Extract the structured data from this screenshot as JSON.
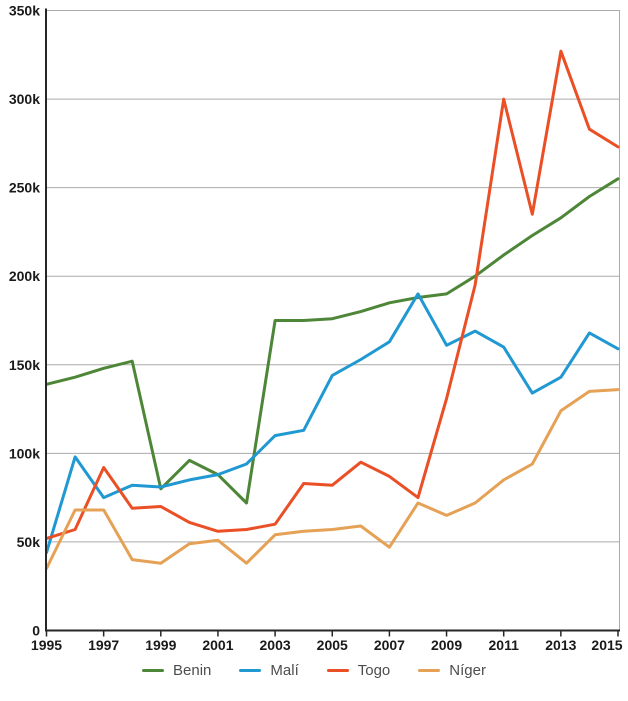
{
  "chart_data": {
    "type": "line",
    "title": "",
    "xlabel": "",
    "ylabel": "",
    "x": [
      1995,
      1996,
      1997,
      1998,
      1999,
      2000,
      2001,
      2002,
      2003,
      2004,
      2005,
      2006,
      2007,
      2008,
      2009,
      2010,
      2011,
      2012,
      2013,
      2014,
      2015
    ],
    "series": [
      {
        "name": "Benin",
        "color": "#4e8638",
        "values": [
          139000,
          143000,
          148000,
          152000,
          80000,
          96000,
          88000,
          72000,
          175000,
          175000,
          176000,
          180000,
          185000,
          188000,
          190000,
          200000,
          212000,
          223000,
          233000,
          245000,
          255000
        ]
      },
      {
        "name": "Malí",
        "color": "#2098d1",
        "values": [
          44000,
          98000,
          75000,
          82000,
          81000,
          85000,
          88000,
          94000,
          110000,
          113000,
          144000,
          153000,
          163000,
          190000,
          161000,
          169000,
          160000,
          134000,
          143000,
          168000,
          159000
        ]
      },
      {
        "name": "Togo",
        "color": "#ea4f26",
        "values": [
          52000,
          57000,
          92000,
          69000,
          70000,
          61000,
          56000,
          57000,
          60000,
          83000,
          82000,
          95000,
          87000,
          75000,
          131000,
          195000,
          300000,
          235000,
          327000,
          283000,
          273000
        ]
      },
      {
        "name": "Níger",
        "color": "#e5a155",
        "values": [
          35000,
          68000,
          68000,
          40000,
          38000,
          49000,
          51000,
          38000,
          54000,
          56000,
          57000,
          59000,
          47000,
          72000,
          65000,
          72000,
          85000,
          94000,
          124000,
          135000,
          136000
        ]
      }
    ],
    "ylim": [
      0,
      350000
    ],
    "ytick_values": [
      0,
      50000,
      100000,
      150000,
      200000,
      250000,
      300000,
      350000
    ],
    "ytick_labels": [
      "0",
      "50k",
      "100k",
      "150k",
      "200k",
      "250k",
      "300k",
      "350k"
    ],
    "xtick_labels": [
      "1995",
      "1997",
      "1999",
      "2001",
      "2003",
      "2005",
      "2007",
      "2009",
      "2011",
      "2013",
      "2015"
    ],
    "grid": true,
    "legend_position": "bottom",
    "colors": {
      "gridline": "#ababab",
      "axis": "#262626",
      "tick_label": "#1a1a1a",
      "legend_label": "#4d4d4d",
      "background": "#ffffff"
    }
  }
}
